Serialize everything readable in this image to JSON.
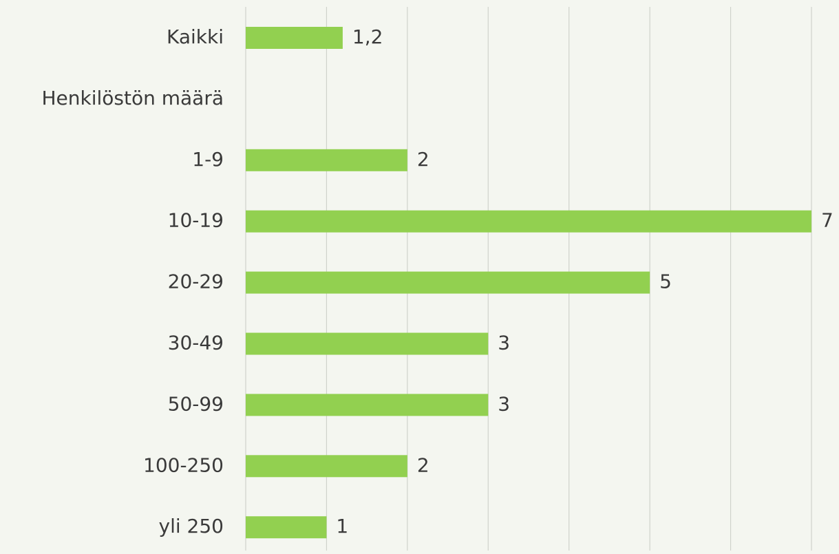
{
  "chart_data": {
    "type": "bar",
    "orientation": "horizontal",
    "categories": [
      "Kaikki",
      "Henkilöstön määrä",
      "1-9",
      "10-19",
      "20-29",
      "30-49",
      "50-99",
      "100-250",
      "yli 250"
    ],
    "values": [
      1.2,
      null,
      2,
      7,
      5,
      3,
      3,
      2,
      1
    ],
    "value_labels": [
      "1,2",
      null,
      "2",
      "7",
      "5",
      "3",
      "3",
      "2",
      "1"
    ],
    "color": "#92d050",
    "xlim": [
      0,
      7
    ],
    "xticks": [
      0,
      1,
      2,
      3,
      4,
      5,
      6,
      7
    ],
    "grid": true
  }
}
